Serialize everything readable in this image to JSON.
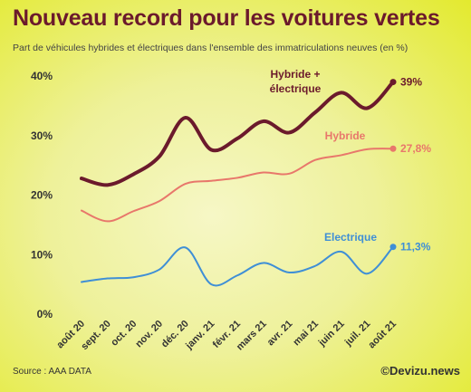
{
  "header": {
    "title": "Nouveau record pour les voitures vertes",
    "subtitle": "Part de véhicules hybrides et électriques dans l'ensemble des immatriculations neuves (en %)"
  },
  "footer": {
    "source": "Source : AAA DATA",
    "brand": "©Devizu.news"
  },
  "chart_data": {
    "type": "line",
    "title": "Nouveau record pour les voitures vertes",
    "subtitle": "Part de véhicules hybrides et électriques dans l'ensemble des immatriculations neuves (en %)",
    "categories": [
      "août 20",
      "sept. 20",
      "oct. 20",
      "nov. 20",
      "déc. 20",
      "janv. 21",
      "févr. 21",
      "mars 21",
      "avr. 21",
      "mai 21",
      "juin 21",
      "juil. 21",
      "août 21"
    ],
    "ylim": [
      0,
      40
    ],
    "yticks": [
      "0%",
      "10%",
      "20%",
      "30%",
      "40%"
    ],
    "grid": false,
    "series": [
      {
        "name": "Hybride + électrique",
        "name_lines": [
          "Hybride +",
          "électrique"
        ],
        "color": "#6b1a2c",
        "values": [
          22.8,
          21.7,
          23.5,
          26.5,
          33.0,
          27.6,
          29.5,
          32.4,
          30.5,
          33.9,
          37.2,
          34.6,
          39.0
        ],
        "end_label": "39%"
      },
      {
        "name": "Hybride",
        "name_lines": [
          "Hybride"
        ],
        "color": "#e8776b",
        "values": [
          17.4,
          15.6,
          17.3,
          19.0,
          21.9,
          22.4,
          22.9,
          23.8,
          23.6,
          25.9,
          26.7,
          27.7,
          27.8
        ],
        "end_label": "27,8%"
      },
      {
        "name": "Electrique",
        "name_lines": [
          "Electrique"
        ],
        "color": "#3f8fd6",
        "values": [
          5.4,
          6.0,
          6.2,
          7.5,
          11.2,
          5.0,
          6.5,
          8.6,
          7.0,
          8.1,
          10.5,
          6.8,
          11.3
        ],
        "end_label": "11,3%"
      }
    ]
  }
}
